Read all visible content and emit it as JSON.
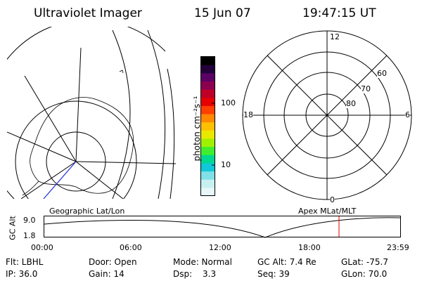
{
  "header": {
    "title": "Ultraviolet Imager",
    "date": "15 Jun 07",
    "time": "19:47:15 UT"
  },
  "colorbar": {
    "unit_label": "photon cm⁻²s⁻¹",
    "tick_100": "100",
    "tick_10": "10",
    "colors": [
      "#000000",
      "#24003a",
      "#5a0064",
      "#8c0050",
      "#be0028",
      "#e60000",
      "#ff4000",
      "#ff8800",
      "#ffc000",
      "#e8e800",
      "#a0f000",
      "#40ee30",
      "#00d890",
      "#10c8d8",
      "#80e0e8",
      "#c8f0f0",
      "#e8f8f8"
    ]
  },
  "polar_grid": {
    "mlt_labels": [
      "12",
      "18",
      "6",
      "0"
    ],
    "mlat_labels": [
      "60",
      "70",
      "80"
    ]
  },
  "timeline": {
    "left_label": "Geographic Lat/Lon",
    "right_label": "Apex MLat/MLT",
    "yaxis_title": "GC Alt",
    "y_top": "9.0",
    "y_bottom": "1.8",
    "time_ticks": [
      "00:00",
      "06:00",
      "12:00",
      "18:00",
      "23:59"
    ],
    "marker_color": "#e00000"
  },
  "info": {
    "filter": "Flt: LBHL",
    "ip": "IP: 36.0",
    "door": "Door: Open",
    "gain": "Gain: 14",
    "mode": "Mode: Normal",
    "dsp_label": "Dsp:",
    "dsp_value": "3.3",
    "gc_alt": "GC Alt: 7.4 Re",
    "seq": "Seq: 39",
    "glat": "GLat: -75.7",
    "glon": "GLon: 70.0"
  }
}
